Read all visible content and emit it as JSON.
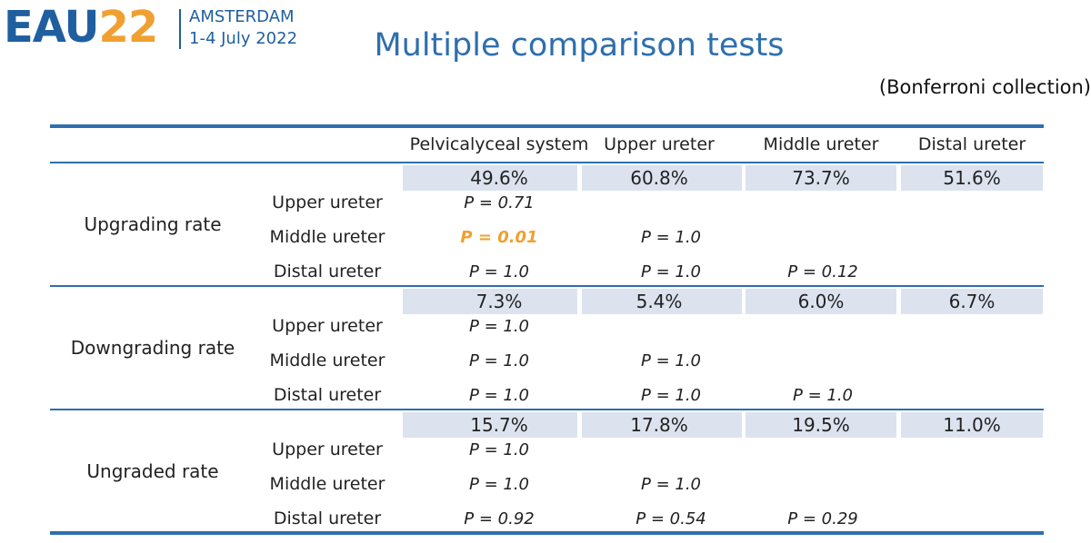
{
  "logo": {
    "eau": "EAU",
    "year": "22",
    "city": "AMSTERDAM",
    "dates": "1-4 July 2022"
  },
  "title": "Multiple comparison tests",
  "subtitle": "(Bonferroni collection)",
  "table": {
    "columns": [
      "Pelvicalyceal system",
      "Upper ureter",
      "Middle ureter",
      "Distal ureter"
    ],
    "groups": [
      {
        "name": "Upgrading rate",
        "rates": [
          "49.6%",
          "60.8%",
          "73.7%",
          "51.6%"
        ],
        "comparisons": [
          {
            "label": "Upper ureter",
            "p": [
              "P = 0.71",
              null,
              null
            ]
          },
          {
            "label": "Middle ureter",
            "p": [
              "P = 0.01",
              "P = 1.0",
              null
            ]
          },
          {
            "label": "Distal ureter",
            "p": [
              "P = 1.0",
              "P = 1.0",
              "P = 0.12"
            ]
          }
        ]
      },
      {
        "name": "Downgrading rate",
        "rates": [
          "7.3%",
          "5.4%",
          "6.0%",
          "6.7%"
        ],
        "comparisons": [
          {
            "label": "Upper ureter",
            "p": [
              "P = 1.0",
              null,
              null
            ]
          },
          {
            "label": "Middle ureter",
            "p": [
              "P = 1.0",
              "P = 1.0",
              null
            ]
          },
          {
            "label": "Distal ureter",
            "p": [
              "P = 1.0",
              "P = 1.0",
              "P = 1.0"
            ]
          }
        ]
      },
      {
        "name": "Ungraded rate",
        "rates": [
          "15.7%",
          "17.8%",
          "19.5%",
          "11.0%"
        ],
        "comparisons": [
          {
            "label": "Upper ureter",
            "p": [
              "P = 1.0",
              null,
              null
            ]
          },
          {
            "label": "Middle ureter",
            "p": [
              "P = 1.0",
              "P = 1.0",
              null
            ]
          },
          {
            "label": "Distal ureter",
            "p": [
              "P = 0.92",
              "P = 0.54",
              "P = 0.29"
            ]
          }
        ]
      }
    ]
  }
}
